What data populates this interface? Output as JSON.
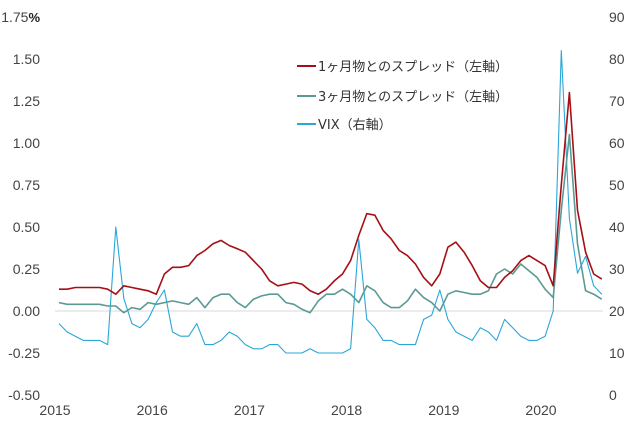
{
  "chart_data": {
    "type": "line",
    "title": "",
    "left_axis": {
      "unit": "%",
      "ylim": [
        -0.5,
        1.75
      ],
      "ticks": [
        "1.75",
        "1.50",
        "1.25",
        "1.00",
        "0.75",
        "0.50",
        "0.25",
        "0.00",
        "-0.25",
        "-0.50"
      ],
      "negative_color": "#c00000"
    },
    "right_axis": {
      "ylim": [
        0,
        90
      ],
      "ticks": [
        "90",
        "80",
        "70",
        "60",
        "50",
        "40",
        "30",
        "20",
        "10",
        "0"
      ]
    },
    "x_ticks": [
      "2015",
      "2016",
      "2017",
      "2018",
      "2019",
      "2020"
    ],
    "x": [
      "2015-01",
      "2015-02",
      "2015-03",
      "2015-04",
      "2015-05",
      "2015-06",
      "2015-07",
      "2015-08",
      "2015-09",
      "2015-10",
      "2015-11",
      "2015-12",
      "2016-01",
      "2016-02",
      "2016-03",
      "2016-04",
      "2016-05",
      "2016-06",
      "2016-07",
      "2016-08",
      "2016-09",
      "2016-10",
      "2016-11",
      "2016-12",
      "2017-01",
      "2017-02",
      "2017-03",
      "2017-04",
      "2017-05",
      "2017-06",
      "2017-07",
      "2017-08",
      "2017-09",
      "2017-10",
      "2017-11",
      "2017-12",
      "2018-01",
      "2018-02",
      "2018-03",
      "2018-04",
      "2018-05",
      "2018-06",
      "2018-07",
      "2018-08",
      "2018-09",
      "2018-10",
      "2018-11",
      "2018-12",
      "2019-01",
      "2019-02",
      "2019-03",
      "2019-04",
      "2019-05",
      "2019-06",
      "2019-07",
      "2019-08",
      "2019-09",
      "2019-10",
      "2019-11",
      "2019-12",
      "2020-01",
      "2020-02",
      "2020-03",
      "2020-04",
      "2020-05",
      "2020-06",
      "2020-07",
      "2020-08"
    ],
    "grid": false,
    "legend_position": "top-right",
    "series": [
      {
        "name": "1ヶ月物とのスプレッド（左軸）",
        "axis": "left",
        "color": "#a50f15",
        "values": [
          0.13,
          0.13,
          0.14,
          0.14,
          0.14,
          0.14,
          0.13,
          0.1,
          0.15,
          0.14,
          0.13,
          0.12,
          0.1,
          0.22,
          0.26,
          0.26,
          0.27,
          0.33,
          0.36,
          0.4,
          0.42,
          0.39,
          0.37,
          0.35,
          0.3,
          0.25,
          0.18,
          0.15,
          0.16,
          0.17,
          0.16,
          0.12,
          0.1,
          0.13,
          0.18,
          0.22,
          0.3,
          0.45,
          0.58,
          0.57,
          0.48,
          0.43,
          0.36,
          0.33,
          0.28,
          0.2,
          0.15,
          0.22,
          0.38,
          0.41,
          0.35,
          0.27,
          0.18,
          0.14,
          0.14,
          0.2,
          0.24,
          0.3,
          0.33,
          0.3,
          0.27,
          0.15,
          0.75,
          1.3,
          0.6,
          0.35,
          0.22,
          0.19
        ]
      },
      {
        "name": "3ヶ月物とのスプレッド（左軸）",
        "axis": "left",
        "color": "#5b9a94",
        "values": [
          0.05,
          0.04,
          0.04,
          0.04,
          0.04,
          0.04,
          0.03,
          0.03,
          -0.01,
          0.02,
          0.01,
          0.05,
          0.04,
          0.05,
          0.06,
          0.05,
          0.04,
          0.08,
          0.02,
          0.08,
          0.1,
          0.1,
          0.05,
          0.02,
          0.07,
          0.09,
          0.1,
          0.1,
          0.05,
          0.04,
          0.01,
          -0.01,
          0.06,
          0.1,
          0.1,
          0.13,
          0.1,
          0.05,
          0.15,
          0.12,
          0.05,
          0.02,
          0.02,
          0.06,
          0.13,
          0.08,
          0.05,
          0.0,
          0.1,
          0.12,
          0.11,
          0.1,
          0.1,
          0.12,
          0.22,
          0.25,
          0.22,
          0.28,
          0.24,
          0.2,
          0.13,
          0.08,
          0.6,
          1.05,
          0.4,
          0.12,
          0.1,
          0.07
        ]
      },
      {
        "name": "VIX（右軸）",
        "axis": "right",
        "color": "#2aa7d8",
        "values": [
          17,
          15,
          14,
          13,
          13,
          13,
          12,
          40,
          23,
          17,
          16,
          18,
          22,
          25,
          15,
          14,
          14,
          17,
          12,
          12,
          13,
          15,
          14,
          12,
          11,
          11,
          12,
          12,
          10,
          10,
          10,
          11,
          10,
          10,
          10,
          10,
          11,
          37,
          18,
          16,
          13,
          13,
          12,
          12,
          12,
          18,
          19,
          25,
          18,
          15,
          14,
          13,
          16,
          15,
          13,
          18,
          16,
          14,
          13,
          13,
          14,
          20,
          82,
          42,
          29,
          33,
          26,
          24
        ]
      }
    ]
  }
}
